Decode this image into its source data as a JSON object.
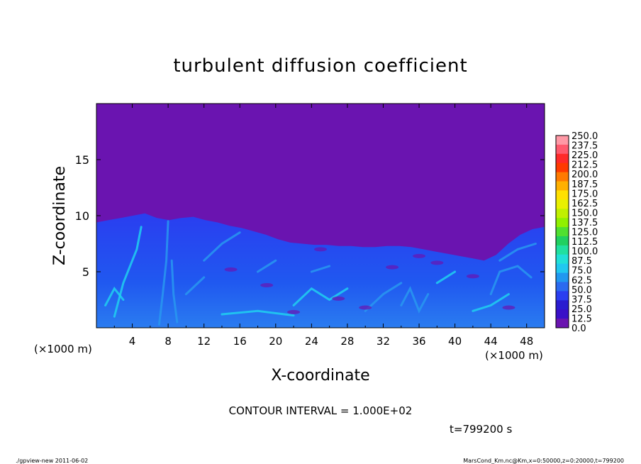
{
  "chart_data": {
    "type": "heatmap",
    "title": "turbulent diffusion coefficient",
    "xlabel": "X-coordinate",
    "ylabel": "Z-coordinate",
    "x_unit_label": "(×1000 m)",
    "y_unit_label": "(×1000 m)",
    "xlim": [
      0,
      50
    ],
    "ylim": [
      0,
      20
    ],
    "x_ticks": [
      "4",
      "8",
      "12",
      "16",
      "20",
      "24",
      "28",
      "32",
      "36",
      "40",
      "44",
      "48"
    ],
    "y_ticks": [
      "5",
      "10",
      "15"
    ],
    "colorbar_labels": [
      "250.0",
      "237.5",
      "225.0",
      "212.5",
      "200.0",
      "187.5",
      "175.0",
      "162.5",
      "150.0",
      "137.5",
      "125.0",
      "112.5",
      "100.0",
      "87.5",
      "75.0",
      "62.5",
      "50.0",
      "37.5",
      "25.0",
      "12.5",
      "0.0"
    ],
    "colorbar_colors": [
      "#ff99a6",
      "#ff5a6e",
      "#ff2a2a",
      "#ff3a00",
      "#ff7a00",
      "#ffb000",
      "#ffe000",
      "#e8f000",
      "#c0f000",
      "#90f000",
      "#50e030",
      "#20d060",
      "#20e0a0",
      "#20e0d8",
      "#20c8f0",
      "#2098f0",
      "#2a6af0",
      "#2a3ef0",
      "#2a1cd0",
      "#3a10c8",
      "#6a14b0"
    ],
    "background_color": "#6a14b0",
    "boundary_layer_top_km": [
      9.4,
      9.6,
      9.8,
      10.0,
      10.2,
      9.8,
      9.6,
      9.8,
      9.9,
      9.6,
      9.4,
      9.1,
      8.9,
      8.6,
      8.3,
      7.9,
      7.6,
      7.5,
      7.4,
      7.4,
      7.3,
      7.3,
      7.2,
      7.2,
      7.3,
      7.3,
      7.2,
      7.0,
      6.8,
      6.6,
      6.4,
      6.2,
      6.0,
      6.5,
      7.5,
      8.3,
      8.8,
      9.0
    ],
    "contour_interval_text": "CONTOUR INTERVAL = 1.000E+02",
    "time_text": "t=799200 s"
  },
  "footer": {
    "left": "./gpview-new  2011-06-02",
    "right": "MarsCond_Km.nc@Km,x=0:50000,z=0:20000,t=799200"
  }
}
